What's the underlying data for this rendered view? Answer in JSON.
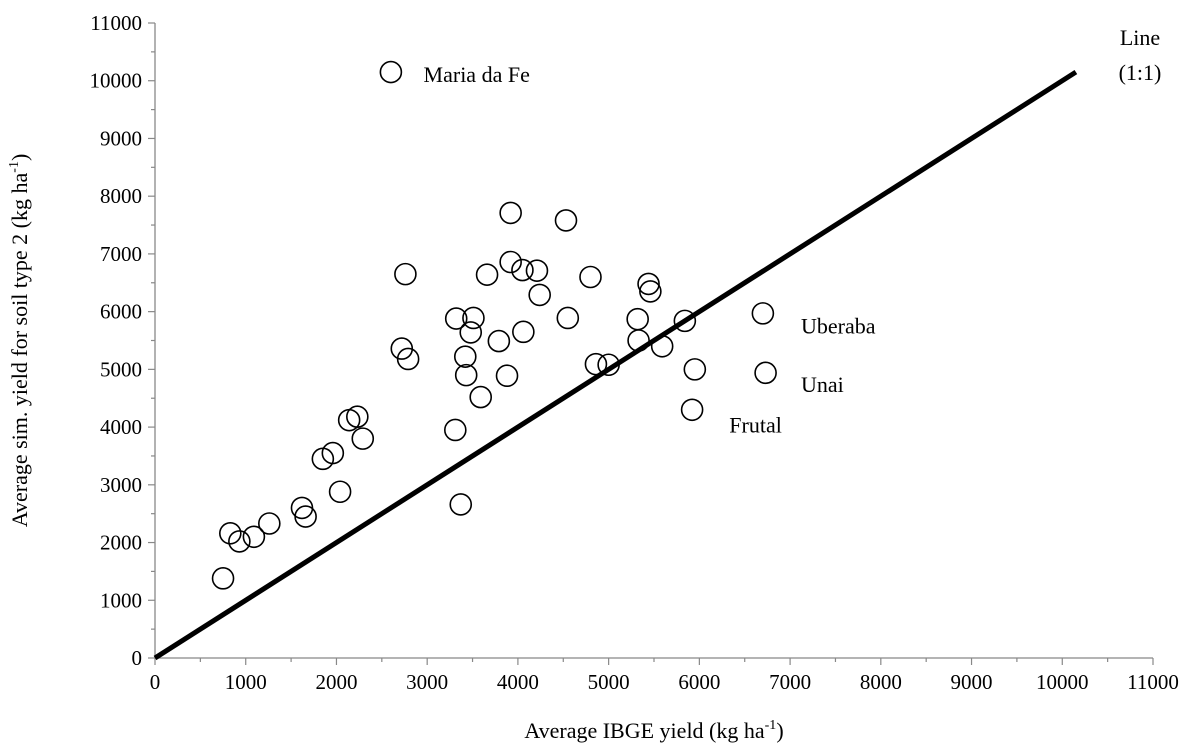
{
  "chart_data": {
    "type": "scatter",
    "title": "",
    "xlabel": {
      "main": "Average IBGE yield (kg ha",
      "sup": "-1",
      "end": ")"
    },
    "ylabel": {
      "main": "Average sim. yield for soil type 2 (kg ha",
      "sup": "-1",
      "end": ")"
    },
    "xlim": [
      0,
      11000
    ],
    "ylim": [
      0,
      11000
    ],
    "xticks": [
      "0",
      "1000",
      "2000",
      "3000",
      "4000",
      "5000",
      "6000",
      "7000",
      "8000",
      "9000",
      "10000",
      "11000"
    ],
    "yticks": [
      "0",
      "1000",
      "2000",
      "3000",
      "4000",
      "5000",
      "6000",
      "7000",
      "8000",
      "9000",
      "10000",
      "11000"
    ],
    "grid": false,
    "reference_line": {
      "label_line1": "Line",
      "label_line2": "(1:1)",
      "x": [
        0,
        10150
      ],
      "y": [
        0,
        10150
      ]
    },
    "points": [
      {
        "x": 750,
        "y": 1380
      },
      {
        "x": 830,
        "y": 2160
      },
      {
        "x": 930,
        "y": 2020
      },
      {
        "x": 1090,
        "y": 2100
      },
      {
        "x": 1260,
        "y": 2330
      },
      {
        "x": 1620,
        "y": 2600
      },
      {
        "x": 1660,
        "y": 2450
      },
      {
        "x": 1850,
        "y": 3450
      },
      {
        "x": 1960,
        "y": 3550
      },
      {
        "x": 2040,
        "y": 2880
      },
      {
        "x": 2140,
        "y": 4120
      },
      {
        "x": 2230,
        "y": 4180
      },
      {
        "x": 2290,
        "y": 3800
      },
      {
        "x": 2600,
        "y": 10150
      },
      {
        "x": 2720,
        "y": 5360
      },
      {
        "x": 2760,
        "y": 6650
      },
      {
        "x": 2790,
        "y": 5180
      },
      {
        "x": 3310,
        "y": 3950
      },
      {
        "x": 3320,
        "y": 5880
      },
      {
        "x": 3370,
        "y": 2660
      },
      {
        "x": 3420,
        "y": 5220
      },
      {
        "x": 3430,
        "y": 4900
      },
      {
        "x": 3480,
        "y": 5640
      },
      {
        "x": 3510,
        "y": 5890
      },
      {
        "x": 3590,
        "y": 4520
      },
      {
        "x": 3660,
        "y": 6640
      },
      {
        "x": 3790,
        "y": 5490
      },
      {
        "x": 3880,
        "y": 4890
      },
      {
        "x": 3920,
        "y": 7710
      },
      {
        "x": 3920,
        "y": 6860
      },
      {
        "x": 4050,
        "y": 6720
      },
      {
        "x": 4060,
        "y": 5650
      },
      {
        "x": 4210,
        "y": 6710
      },
      {
        "x": 4240,
        "y": 6290
      },
      {
        "x": 4530,
        "y": 7580
      },
      {
        "x": 4550,
        "y": 5890
      },
      {
        "x": 4800,
        "y": 6600
      },
      {
        "x": 4860,
        "y": 5090
      },
      {
        "x": 5000,
        "y": 5080
      },
      {
        "x": 5320,
        "y": 5870
      },
      {
        "x": 5330,
        "y": 5500
      },
      {
        "x": 5440,
        "y": 6480
      },
      {
        "x": 5460,
        "y": 6350
      },
      {
        "x": 5590,
        "y": 5400
      },
      {
        "x": 5840,
        "y": 5840
      },
      {
        "x": 5920,
        "y": 4300
      },
      {
        "x": 5950,
        "y": 5000
      },
      {
        "x": 6700,
        "y": 5970
      },
      {
        "x": 6730,
        "y": 4940
      }
    ],
    "annotations": [
      {
        "text": "Maria da Fe",
        "x": 2960,
        "y": 10100
      },
      {
        "text": "Uberaba",
        "x": 7120,
        "y": 5740
      },
      {
        "text": "Unai",
        "x": 7120,
        "y": 4730
      },
      {
        "text": "Frutal",
        "x": 6330,
        "y": 4030
      }
    ]
  }
}
